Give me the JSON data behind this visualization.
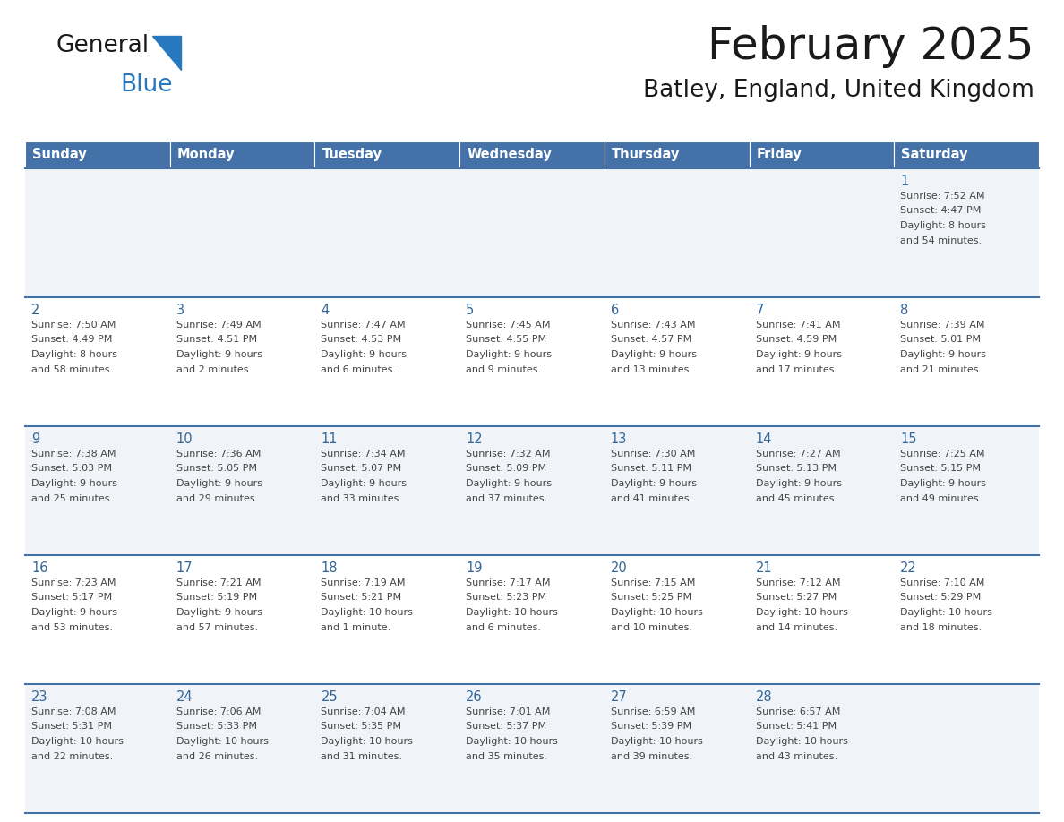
{
  "title": "February 2025",
  "subtitle": "Batley, England, United Kingdom",
  "days_of_week": [
    "Sunday",
    "Monday",
    "Tuesday",
    "Wednesday",
    "Thursday",
    "Friday",
    "Saturday"
  ],
  "header_bg": "#4472A8",
  "header_text": "#ffffff",
  "row_bg_light": "#f0f4f8",
  "row_bg_white": "#ffffff",
  "day_number_color": "#336699",
  "text_color": "#444444",
  "line_color": "#4472A8",
  "calendar_data": [
    [
      {
        "day": null,
        "sunrise": null,
        "sunset": null,
        "daylight": null
      },
      {
        "day": null,
        "sunrise": null,
        "sunset": null,
        "daylight": null
      },
      {
        "day": null,
        "sunrise": null,
        "sunset": null,
        "daylight": null
      },
      {
        "day": null,
        "sunrise": null,
        "sunset": null,
        "daylight": null
      },
      {
        "day": null,
        "sunrise": null,
        "sunset": null,
        "daylight": null
      },
      {
        "day": null,
        "sunrise": null,
        "sunset": null,
        "daylight": null
      },
      {
        "day": 1,
        "sunrise": "7:52 AM",
        "sunset": "4:47 PM",
        "daylight": "8 hours and 54 minutes"
      }
    ],
    [
      {
        "day": 2,
        "sunrise": "7:50 AM",
        "sunset": "4:49 PM",
        "daylight": "8 hours and 58 minutes"
      },
      {
        "day": 3,
        "sunrise": "7:49 AM",
        "sunset": "4:51 PM",
        "daylight": "9 hours and 2 minutes"
      },
      {
        "day": 4,
        "sunrise": "7:47 AM",
        "sunset": "4:53 PM",
        "daylight": "9 hours and 6 minutes"
      },
      {
        "day": 5,
        "sunrise": "7:45 AM",
        "sunset": "4:55 PM",
        "daylight": "9 hours and 9 minutes"
      },
      {
        "day": 6,
        "sunrise": "7:43 AM",
        "sunset": "4:57 PM",
        "daylight": "9 hours and 13 minutes"
      },
      {
        "day": 7,
        "sunrise": "7:41 AM",
        "sunset": "4:59 PM",
        "daylight": "9 hours and 17 minutes"
      },
      {
        "day": 8,
        "sunrise": "7:39 AM",
        "sunset": "5:01 PM",
        "daylight": "9 hours and 21 minutes"
      }
    ],
    [
      {
        "day": 9,
        "sunrise": "7:38 AM",
        "sunset": "5:03 PM",
        "daylight": "9 hours and 25 minutes"
      },
      {
        "day": 10,
        "sunrise": "7:36 AM",
        "sunset": "5:05 PM",
        "daylight": "9 hours and 29 minutes"
      },
      {
        "day": 11,
        "sunrise": "7:34 AM",
        "sunset": "5:07 PM",
        "daylight": "9 hours and 33 minutes"
      },
      {
        "day": 12,
        "sunrise": "7:32 AM",
        "sunset": "5:09 PM",
        "daylight": "9 hours and 37 minutes"
      },
      {
        "day": 13,
        "sunrise": "7:30 AM",
        "sunset": "5:11 PM",
        "daylight": "9 hours and 41 minutes"
      },
      {
        "day": 14,
        "sunrise": "7:27 AM",
        "sunset": "5:13 PM",
        "daylight": "9 hours and 45 minutes"
      },
      {
        "day": 15,
        "sunrise": "7:25 AM",
        "sunset": "5:15 PM",
        "daylight": "9 hours and 49 minutes"
      }
    ],
    [
      {
        "day": 16,
        "sunrise": "7:23 AM",
        "sunset": "5:17 PM",
        "daylight": "9 hours and 53 minutes"
      },
      {
        "day": 17,
        "sunrise": "7:21 AM",
        "sunset": "5:19 PM",
        "daylight": "9 hours and 57 minutes"
      },
      {
        "day": 18,
        "sunrise": "7:19 AM",
        "sunset": "5:21 PM",
        "daylight": "10 hours and 1 minute"
      },
      {
        "day": 19,
        "sunrise": "7:17 AM",
        "sunset": "5:23 PM",
        "daylight": "10 hours and 6 minutes"
      },
      {
        "day": 20,
        "sunrise": "7:15 AM",
        "sunset": "5:25 PM",
        "daylight": "10 hours and 10 minutes"
      },
      {
        "day": 21,
        "sunrise": "7:12 AM",
        "sunset": "5:27 PM",
        "daylight": "10 hours and 14 minutes"
      },
      {
        "day": 22,
        "sunrise": "7:10 AM",
        "sunset": "5:29 PM",
        "daylight": "10 hours and 18 minutes"
      }
    ],
    [
      {
        "day": 23,
        "sunrise": "7:08 AM",
        "sunset": "5:31 PM",
        "daylight": "10 hours and 22 minutes"
      },
      {
        "day": 24,
        "sunrise": "7:06 AM",
        "sunset": "5:33 PM",
        "daylight": "10 hours and 26 minutes"
      },
      {
        "day": 25,
        "sunrise": "7:04 AM",
        "sunset": "5:35 PM",
        "daylight": "10 hours and 31 minutes"
      },
      {
        "day": 26,
        "sunrise": "7:01 AM",
        "sunset": "5:37 PM",
        "daylight": "10 hours and 35 minutes"
      },
      {
        "day": 27,
        "sunrise": "6:59 AM",
        "sunset": "5:39 PM",
        "daylight": "10 hours and 39 minutes"
      },
      {
        "day": 28,
        "sunrise": "6:57 AM",
        "sunset": "5:41 PM",
        "daylight": "10 hours and 43 minutes"
      },
      {
        "day": null,
        "sunrise": null,
        "sunset": null,
        "daylight": null
      }
    ]
  ],
  "logo_color_general": "#1a1a1a",
  "logo_color_blue": "#2878C0",
  "logo_triangle_color": "#2878C0"
}
